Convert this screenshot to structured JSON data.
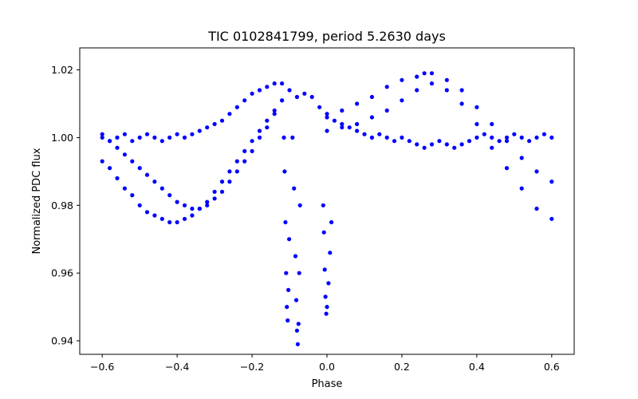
{
  "chart_data": {
    "type": "scatter",
    "title": "TIC 0102841799, period 5.2630 days",
    "xlabel": "Phase",
    "ylabel": "Normalized PDC flux",
    "xlim": [
      -0.66,
      0.66
    ],
    "ylim": [
      0.936,
      1.0265
    ],
    "xticks": [
      -0.6,
      -0.4,
      -0.2,
      0.0,
      0.2,
      0.4,
      0.6
    ],
    "xtick_labels": [
      "−0.6",
      "−0.4",
      "−0.2",
      "0.0",
      "0.2",
      "0.4",
      "0.6"
    ],
    "yticks": [
      0.94,
      0.96,
      0.98,
      1.0,
      1.02
    ],
    "ytick_labels": [
      "0.94",
      "0.96",
      "0.98",
      "1.00",
      "1.02"
    ],
    "grid": false,
    "marker_color": "#0000ff",
    "series": [
      {
        "x": [
          -0.6,
          -0.58,
          -0.56,
          -0.54,
          -0.52,
          -0.5,
          -0.48,
          -0.46,
          -0.44,
          -0.42,
          -0.4,
          -0.38,
          -0.36,
          -0.34,
          -0.32,
          -0.3,
          -0.28,
          -0.26,
          -0.24,
          -0.22,
          -0.2,
          -0.18,
          -0.16,
          -0.14,
          -0.12,
          -0.1,
          -0.08,
          -0.06,
          -0.04,
          -0.02,
          0.0,
          0.02,
          0.04,
          0.06,
          0.08,
          0.1,
          0.12,
          0.14,
          0.16,
          0.18,
          0.2,
          0.22,
          0.24,
          0.26,
          0.28,
          0.3,
          0.32,
          0.34,
          0.36,
          0.38,
          0.4,
          0.42,
          0.44,
          0.46,
          0.48,
          0.5,
          0.52,
          0.54,
          0.56,
          0.58,
          0.6
        ],
        "y": [
          1.0,
          0.999,
          1.0,
          1.001,
          0.999,
          1.0,
          1.001,
          1.0,
          0.999,
          1.0,
          1.001,
          1.0,
          1.001,
          1.002,
          1.003,
          1.004,
          1.005,
          1.007,
          1.009,
          1.011,
          1.013,
          1.014,
          1.015,
          1.016,
          1.016,
          1.014,
          1.012,
          1.013,
          1.012,
          1.009,
          1.007,
          1.005,
          1.004,
          1.003,
          1.002,
          1.001,
          1.0,
          1.001,
          1.0,
          0.999,
          1.0,
          0.999,
          0.998,
          0.997,
          0.998,
          0.999,
          0.998,
          0.997,
          0.998,
          0.999,
          1.0,
          1.001,
          1.0,
          0.999,
          1.0,
          1.001,
          1.0,
          0.999,
          1.0,
          1.001,
          1.0
        ]
      },
      {
        "x": [
          -0.6,
          -0.58,
          -0.56,
          -0.54,
          -0.52,
          -0.5,
          -0.48,
          -0.46,
          -0.44,
          -0.42,
          -0.4,
          -0.38,
          -0.36,
          -0.34,
          -0.32,
          -0.3,
          -0.28,
          -0.26,
          -0.24,
          -0.22,
          -0.2,
          -0.18,
          -0.16,
          -0.14,
          -0.12
        ],
        "y": [
          0.993,
          0.991,
          0.988,
          0.985,
          0.983,
          0.98,
          0.978,
          0.977,
          0.976,
          0.975,
          0.975,
          0.976,
          0.977,
          0.979,
          0.981,
          0.984,
          0.987,
          0.99,
          0.993,
          0.996,
          0.999,
          1.002,
          1.005,
          1.008,
          1.011
        ]
      },
      {
        "x": [
          -0.6,
          -0.58,
          -0.56,
          -0.54,
          -0.52,
          -0.5,
          -0.48,
          -0.46,
          -0.44,
          -0.42,
          -0.4,
          -0.38,
          -0.36,
          -0.34,
          -0.32,
          -0.3,
          -0.28,
          -0.26,
          -0.24,
          -0.22,
          -0.2,
          -0.18,
          -0.16,
          -0.14,
          -0.12
        ],
        "y": [
          1.001,
          0.999,
          0.997,
          0.995,
          0.993,
          0.991,
          0.989,
          0.987,
          0.985,
          0.983,
          0.981,
          0.98,
          0.979,
          0.979,
          0.98,
          0.982,
          0.984,
          0.987,
          0.99,
          0.993,
          0.996,
          1.0,
          1.003,
          1.007,
          1.011
        ]
      },
      {
        "x": [
          0.0,
          0.04,
          0.08,
          0.12,
          0.16,
          0.2,
          0.24,
          0.26,
          0.28,
          0.32,
          0.36,
          0.4,
          0.44,
          0.48,
          0.52,
          0.56,
          0.6
        ],
        "y": [
          1.006,
          1.008,
          1.01,
          1.012,
          1.015,
          1.017,
          1.018,
          1.019,
          1.019,
          1.017,
          1.014,
          1.009,
          1.004,
          0.999,
          0.994,
          0.99,
          0.987
        ]
      },
      {
        "x": [
          0.0,
          0.04,
          0.08,
          0.12,
          0.16,
          0.2,
          0.24,
          0.28,
          0.32,
          0.36,
          0.4,
          0.44,
          0.48,
          0.52,
          0.56,
          0.6
        ],
        "y": [
          1.002,
          1.003,
          1.004,
          1.006,
          1.008,
          1.011,
          1.014,
          1.016,
          1.014,
          1.01,
          1.004,
          0.997,
          0.991,
          0.985,
          0.979,
          0.976
        ]
      },
      {
        "x": [
          -0.115,
          -0.113,
          -0.111,
          -0.109,
          -0.107,
          -0.105,
          -0.103,
          -0.101
        ],
        "y": [
          1.0,
          0.99,
          0.975,
          0.96,
          0.95,
          0.946,
          0.955,
          0.97
        ]
      },
      {
        "x": [
          -0.092,
          -0.088,
          -0.084,
          -0.082,
          -0.08,
          -0.078,
          -0.076,
          -0.074,
          -0.072
        ],
        "y": [
          1.0,
          0.985,
          0.965,
          0.952,
          0.943,
          0.939,
          0.945,
          0.96,
          0.98
        ]
      },
      {
        "x": [
          -0.01,
          -0.008,
          -0.006,
          -0.004,
          -0.002,
          0.0,
          0.004,
          0.008,
          0.012
        ],
        "y": [
          0.98,
          0.972,
          0.961,
          0.953,
          0.948,
          0.95,
          0.957,
          0.966,
          0.975
        ]
      }
    ]
  }
}
